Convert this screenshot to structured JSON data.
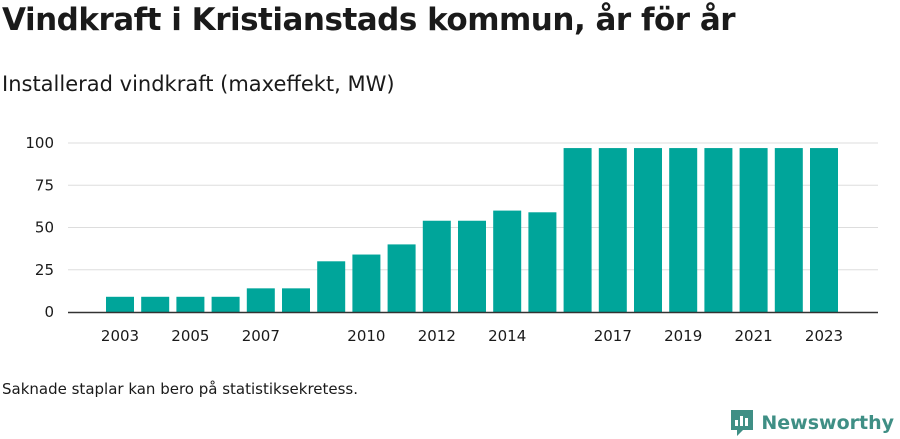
{
  "title": "Vindkraft i Kristianstads kommun, år för år",
  "subtitle": "Installerad vindkraft (maxeffekt, MW)",
  "note": "Saknade staplar kan bero på statistiksekretess.",
  "brand": "Newsworthy",
  "colors": {
    "bar": "#00a59a",
    "grid": "#dddddd",
    "axis": "#333333",
    "brand": "#3f8f85"
  },
  "chart_data": {
    "type": "bar",
    "categories": [
      "2003",
      "2004",
      "2005",
      "2006",
      "2007",
      "2008",
      "2009",
      "2010",
      "2011",
      "2012",
      "2013",
      "2014",
      "2015",
      "2016",
      "2017",
      "2018",
      "2019",
      "2020",
      "2021",
      "2022",
      "2023"
    ],
    "x_tick_labels": [
      "2003",
      "2005",
      "2007",
      "2010",
      "2012",
      "2014",
      "2017",
      "2019",
      "2021",
      "2023"
    ],
    "values": [
      9,
      9,
      9,
      9,
      14,
      14,
      30,
      34,
      40,
      54,
      54,
      60,
      59,
      97,
      97,
      97,
      97,
      97,
      97,
      97,
      97
    ],
    "y_ticks": [
      0,
      25,
      50,
      75,
      100
    ],
    "ylim": [
      0,
      100
    ],
    "grid": true,
    "legend": "none"
  }
}
